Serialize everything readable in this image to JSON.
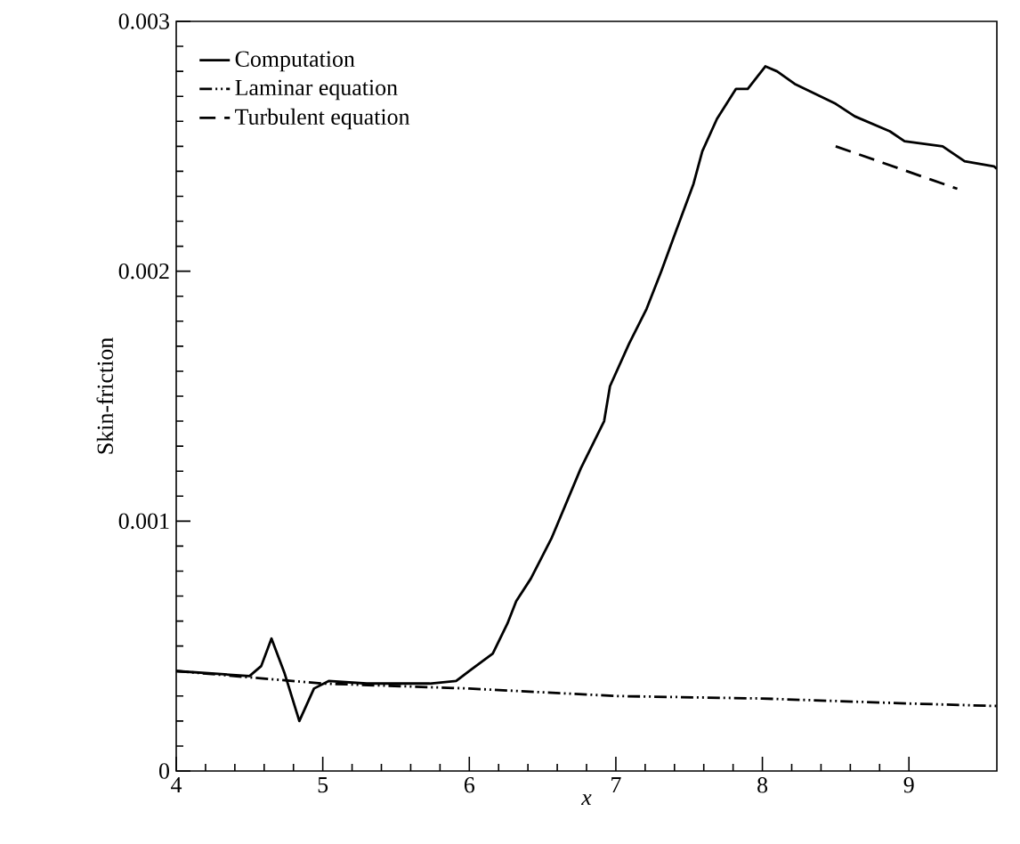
{
  "chart_data": {
    "type": "line",
    "xlabel": "*x*",
    "ylabel": "Skin-friction",
    "xlim": [
      4,
      9.6
    ],
    "ylim": [
      0,
      0.003
    ],
    "xticks": [
      4,
      5,
      6,
      7,
      8,
      9
    ],
    "yticks": [
      0,
      0.001,
      0.002,
      0.003
    ],
    "legend": "top left",
    "series": [
      {
        "name": "Computation",
        "color": "#000000",
        "line_style": "solid",
        "x": [
          4,
          4.5,
          4.58,
          4.65,
          4.74,
          4.84,
          4.94,
          5.04,
          5.3,
          5.73,
          5.91,
          6.0,
          6.16,
          6.26,
          6.32,
          6.42,
          6.56,
          6.76,
          6.92,
          6.96,
          7.09,
          7.21,
          7.31,
          7.41,
          7.53,
          7.59,
          7.69,
          7.82,
          7.9,
          8.02,
          8.1,
          8.22,
          8.5,
          8.63,
          8.87,
          8.97,
          9.23,
          9.38,
          9.58,
          9.6
        ],
        "values": [
          0.0004,
          0.00038,
          0.00042,
          0.00053,
          0.00039,
          0.0002,
          0.00033,
          0.00036,
          0.00035,
          0.00035,
          0.00036,
          0.0004,
          0.00047,
          0.00059,
          0.00068,
          0.00077,
          0.00093,
          0.00121,
          0.0014,
          0.00154,
          0.00171,
          0.00185,
          0.002,
          0.00216,
          0.00235,
          0.00248,
          0.00261,
          0.00273,
          0.00273,
          0.00282,
          0.0028,
          0.00275,
          0.00267,
          0.00262,
          0.00256,
          0.00252,
          0.0025,
          0.00244,
          0.00242,
          0.00241
        ]
      },
      {
        "name": "Laminar equation",
        "color": "#000000",
        "line_style": "dashdotdotted",
        "x": [
          4,
          5,
          6,
          7,
          8,
          9,
          9.6
        ],
        "values": [
          0.0004,
          0.00035,
          0.00033,
          0.0003,
          0.00029,
          0.00027,
          0.00026
        ]
      },
      {
        "name": "Turbulent equation",
        "color": "#000000",
        "line_style": "dashed",
        "x": [
          8.5,
          9.33
        ],
        "values": [
          0.0025,
          0.00233
        ]
      }
    ]
  }
}
